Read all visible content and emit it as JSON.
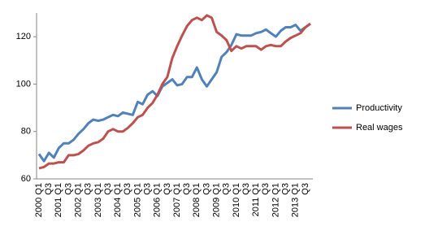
{
  "chart_data": {
    "type": "line",
    "categories": [
      "2000 Q1",
      null,
      "Q3",
      null,
      "2001 Q1",
      null,
      "Q3",
      null,
      "2002 Q1",
      null,
      "Q3",
      null,
      "2003 Q1",
      null,
      "Q3",
      null,
      "2004 Q1",
      null,
      "Q3",
      null,
      "2005 Q1",
      null,
      "Q3",
      null,
      "2006 Q1",
      null,
      "Q3",
      null,
      "2007 Q1",
      null,
      "Q3",
      null,
      "2008 Q1",
      null,
      "Q3",
      null,
      "2009 Q1",
      null,
      "Q3",
      null,
      "2010 Q1",
      null,
      "Q3",
      null,
      "2011 Q1",
      null,
      "Q3",
      null,
      "2012 Q1",
      null,
      "Q3",
      null,
      "2013 Q1",
      null,
      "Q3",
      null
    ],
    "series": [
      {
        "name": "Productivity",
        "color": "#4f81bd",
        "values": [
          70.5,
          67.5,
          71,
          69,
          73,
          75,
          75,
          76.5,
          79,
          81,
          83.5,
          85,
          84.5,
          85,
          86,
          87,
          86.5,
          88,
          87.5,
          87,
          92.5,
          91.5,
          95.5,
          97,
          95,
          99,
          100.5,
          102,
          99.5,
          100,
          103,
          103,
          107,
          102,
          99,
          102,
          105,
          111.5,
          113.5,
          116.5,
          121,
          120.5,
          120.5,
          120.5,
          121.5,
          122,
          123,
          121.5,
          120,
          122.5,
          124,
          124,
          125,
          122.5,
          124,
          125.5
        ]
      },
      {
        "name": "Real wages",
        "color": "#c0504d",
        "values": [
          64.5,
          65,
          66.5,
          66.5,
          67,
          67,
          70,
          70,
          70.5,
          72,
          74,
          75,
          75.5,
          77,
          80,
          81,
          80,
          80,
          81.5,
          83.5,
          86,
          87,
          90,
          92,
          95.5,
          100,
          103,
          111,
          116,
          120.5,
          124.5,
          127,
          128,
          127,
          129,
          128,
          122,
          120.5,
          118.5,
          114,
          116,
          115,
          116,
          116,
          116,
          114.5,
          116,
          116.5,
          116,
          116,
          118,
          119.5,
          120.5,
          121.5,
          124,
          125.5
        ]
      }
    ],
    "ylim": [
      60,
      130
    ],
    "yticks": [
      60,
      80,
      100,
      120
    ],
    "grid": false,
    "legend": "right"
  }
}
